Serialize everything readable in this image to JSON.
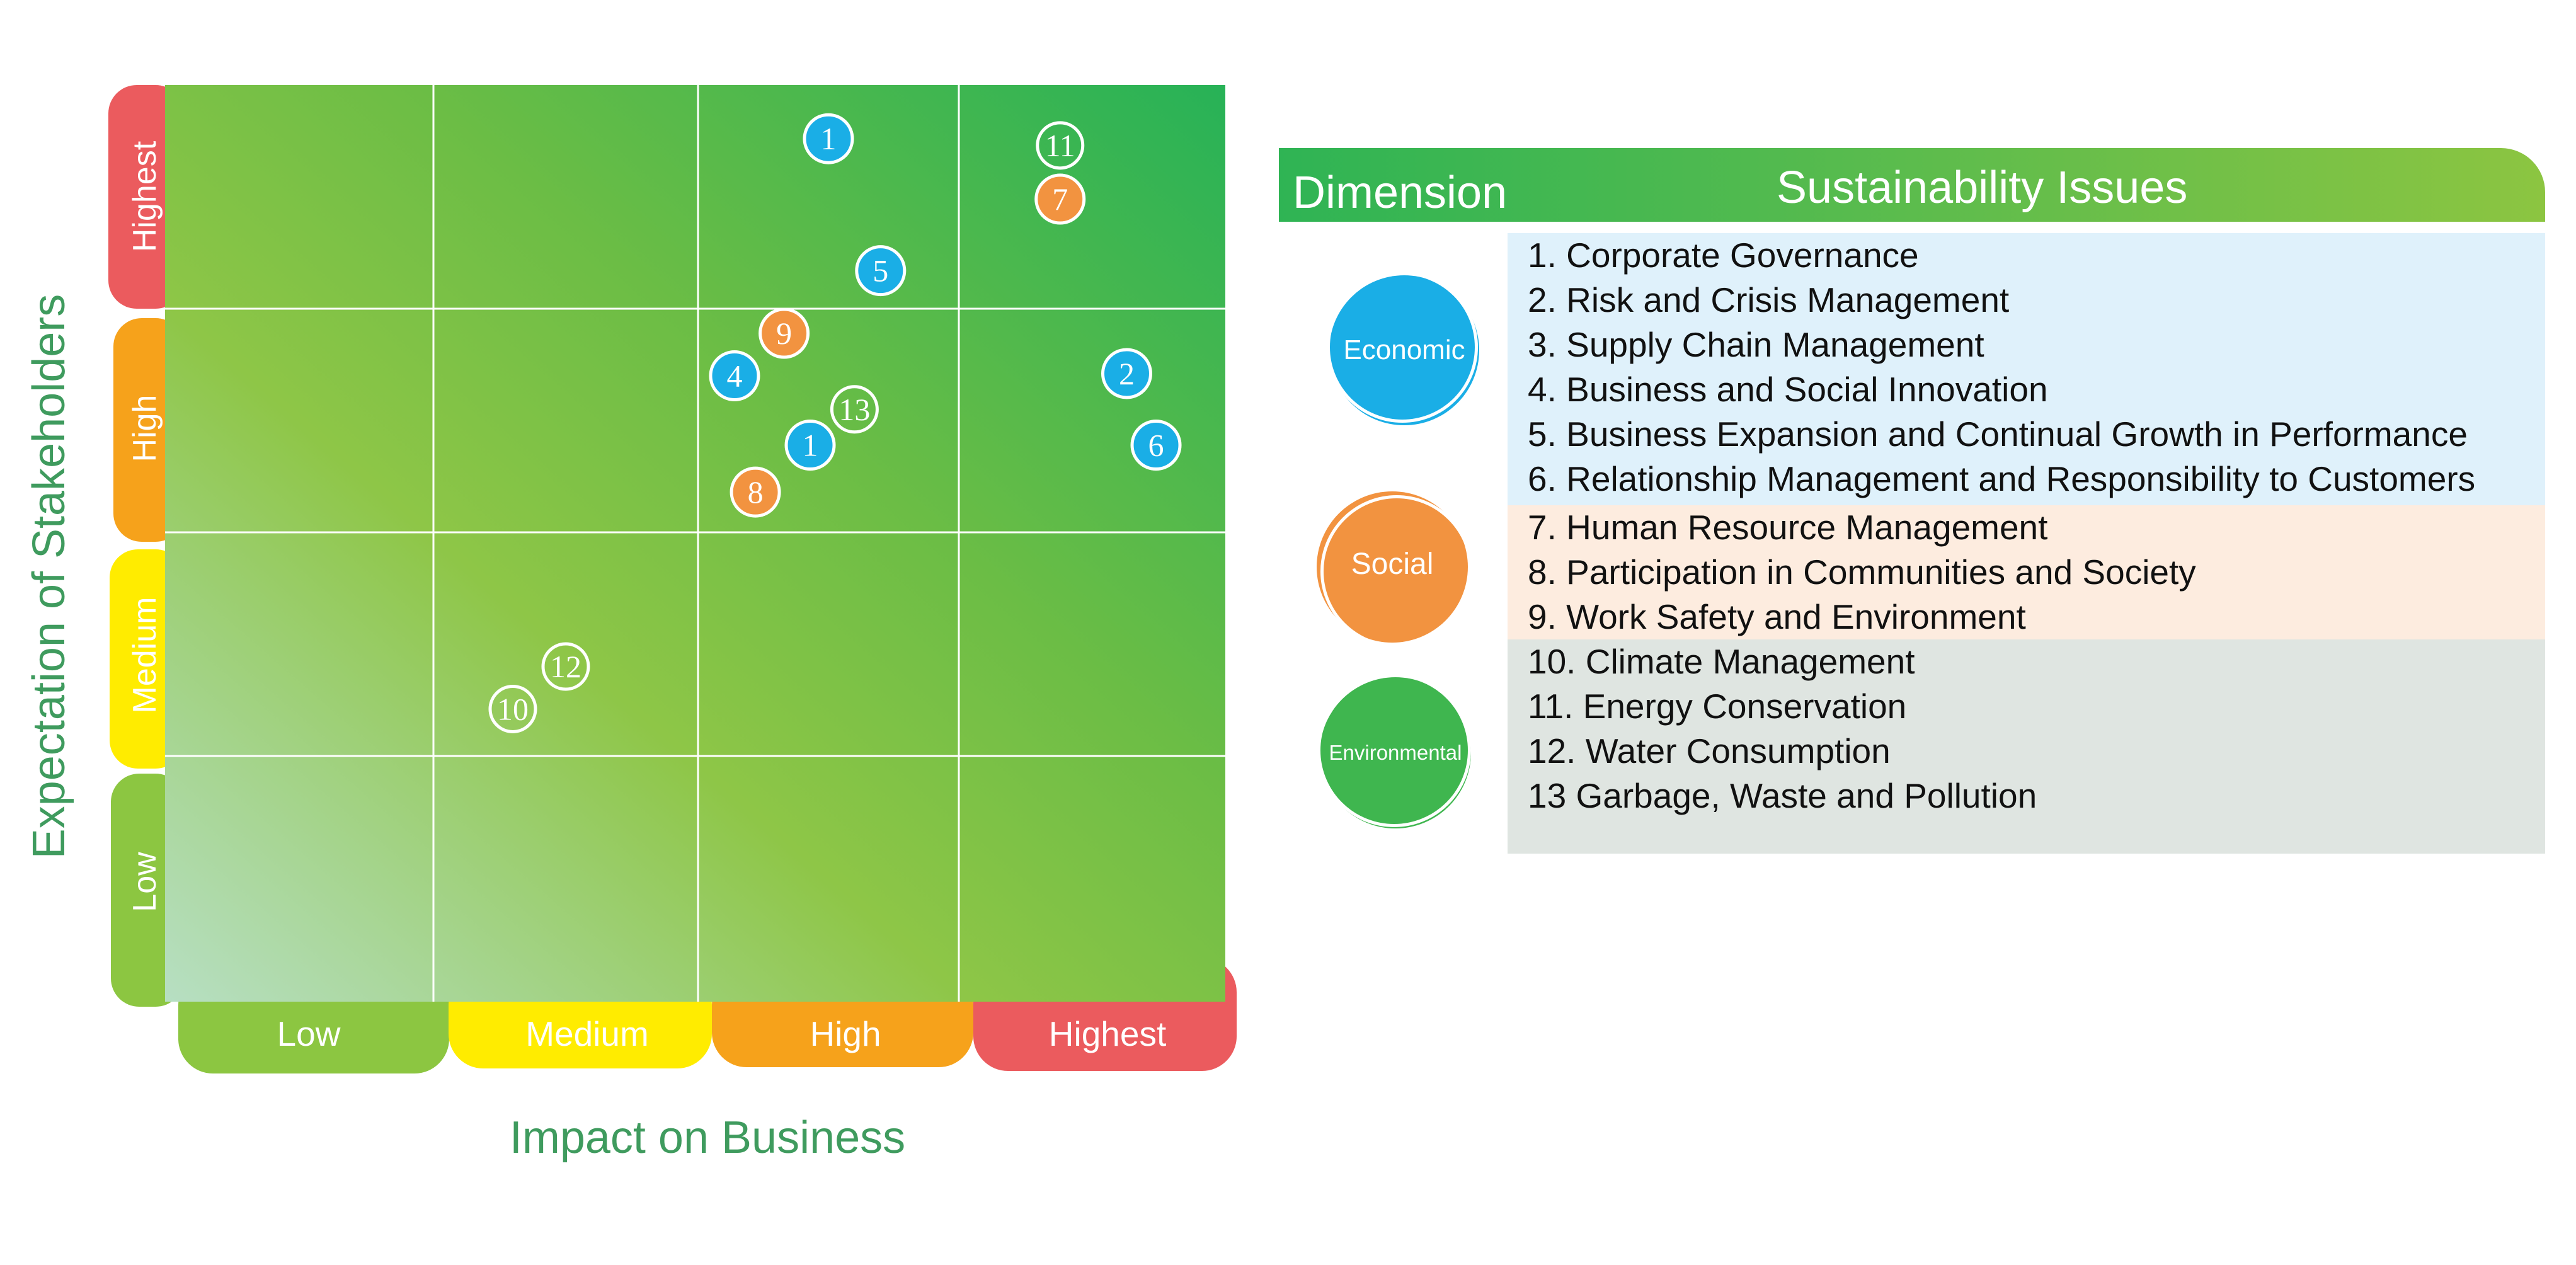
{
  "chart_data": {
    "type": "scatter",
    "xlabel": "Impact on Business",
    "ylabel": "Expectation of Stakeholders",
    "x_categories": [
      "Low",
      "Medium",
      "High",
      "Highest"
    ],
    "y_categories": [
      "Low",
      "Medium",
      "High",
      "Highest"
    ],
    "xlim": [
      0,
      4
    ],
    "ylim": [
      0,
      4
    ],
    "grid": true,
    "points": [
      {
        "label": "1",
        "x": 2.5,
        "y": 3.76,
        "dimension": "economic"
      },
      {
        "label": "11",
        "x": 3.38,
        "y": 3.73,
        "dimension": "environmental"
      },
      {
        "label": "7",
        "x": 3.38,
        "y": 3.49,
        "dimension": "social"
      },
      {
        "label": "5",
        "x": 2.7,
        "y": 3.17,
        "dimension": "economic"
      },
      {
        "label": "9",
        "x": 2.33,
        "y": 2.89,
        "dimension": "social"
      },
      {
        "label": "4",
        "x": 2.14,
        "y": 2.7,
        "dimension": "economic"
      },
      {
        "label": "2",
        "x": 3.63,
        "y": 2.71,
        "dimension": "economic"
      },
      {
        "label": "13",
        "x": 2.6,
        "y": 2.55,
        "dimension": "environmental"
      },
      {
        "label": "1",
        "x": 2.43,
        "y": 2.39,
        "dimension": "economic"
      },
      {
        "label": "6",
        "x": 3.74,
        "y": 2.39,
        "dimension": "economic"
      },
      {
        "label": "8",
        "x": 2.22,
        "y": 2.18,
        "dimension": "social"
      },
      {
        "label": "12",
        "x": 1.5,
        "y": 1.4,
        "dimension": "environmental"
      },
      {
        "label": "10",
        "x": 1.3,
        "y": 1.21,
        "dimension": "environmental"
      }
    ]
  },
  "colors": {
    "economic": "#1aaee6",
    "social": "#f29340",
    "environmental": "#3fb64f",
    "level_low": "#8cc641",
    "level_medium": "#ffec00",
    "level_high": "#f6a21b",
    "level_highest": "#eb5b5e",
    "grid_top_right": "#27b257",
    "grid_bottom_left": "#b7dfc3",
    "axis_title": "#3f9b5e"
  },
  "panel": {
    "header_dimension": "Dimension",
    "header_issues": "Sustainability Issues",
    "groups": [
      {
        "dimension": "Economic",
        "color": "#1aaee6",
        "background": "#dff1fb",
        "issues": [
          "1. Corporate Governance",
          "2. Risk and Crisis Management",
          "3. Supply Chain Management",
          "4. Business and Social Innovation",
          "5. Business Expansion and Continual Growth in Performance",
          "6. Relationship Management and Responsibility to Customers"
        ]
      },
      {
        "dimension": "Social",
        "color": "#f29340",
        "background": "#fdecdf",
        "issues": [
          "7. Human Resource Management",
          "8. Participation in Communities and Society",
          "9. Work Safety and Environment"
        ]
      },
      {
        "dimension": "Environmental",
        "color": "#3fb64f",
        "background": "#dfe5e1",
        "issues": [
          "10. Climate Management",
          "11. Energy Conservation",
          "12. Water Consumption",
          "13 Garbage, Waste and Pollution"
        ]
      }
    ]
  }
}
